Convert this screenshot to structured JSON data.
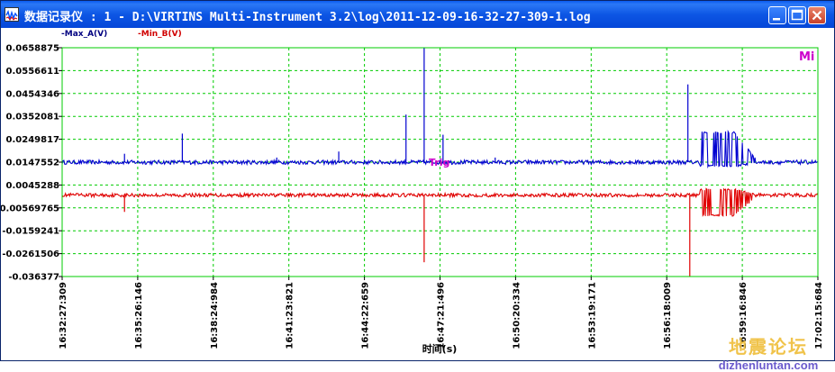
{
  "window": {
    "title": "数据记录仪 : 1 - D:\\VIRTINS Multi-Instrument 3.2\\log\\2011-12-09-16-32-27-309-1.log"
  },
  "colors": {
    "series_a": "#0000d0",
    "series_b": "#e00000",
    "grid": "#00cc00",
    "legend_a": "#000080",
    "legend_b": "#d00000",
    "marker": "#cc00cc"
  },
  "watermark": {
    "cn": "地震论坛",
    "url": "dizhenluntan.com"
  },
  "chart_data": {
    "type": "line",
    "ylim": [
      -0.036377,
      0.0658875
    ],
    "yticks": [
      "0.0658875",
      "0.0556611",
      "0.0454346",
      "0.0352081",
      "0.0249817",
      "0.0147552",
      "0.0045288",
      "-0.00569765",
      "-0.0159241",
      "-0.0261506",
      "-0.036377"
    ],
    "xticks": [
      "16:32:27:309",
      "16:35:26:146",
      "16:38:24:984",
      "16:41:23:821",
      "16:44:22:659",
      "16:47:21:496",
      "16:50:20:334",
      "16:53:19:171",
      "16:56:18:009",
      "16:59:16:846",
      "17:02:15:684"
    ],
    "xlabel": "时间(s)",
    "ylabel": "",
    "legend": [
      "-Max_A(V)",
      "-Min_B(V)"
    ],
    "corner_label": "Mi",
    "marker_label": "Trig",
    "series": [
      {
        "name": "-Max_A(V)",
        "baseline": 0.0147,
        "noise": 0.0009,
        "spikes": [
          {
            "t": 0.0825,
            "v": 0.0185
          },
          {
            "t": 0.159,
            "v": 0.0275
          },
          {
            "t": 0.284,
            "v": 0.0168
          },
          {
            "t": 0.366,
            "v": 0.0195
          },
          {
            "t": 0.455,
            "v": 0.036
          },
          {
            "t": 0.479,
            "v": 0.0658875
          },
          {
            "t": 0.504,
            "v": 0.027
          },
          {
            "t": 0.573,
            "v": 0.0168
          },
          {
            "t": 0.828,
            "v": 0.0495
          }
        ],
        "burst": {
          "from": 0.8435,
          "to": 0.921,
          "peak": 0.028,
          "low": 0.013
        }
      },
      {
        "name": "-Min_B(V)",
        "baseline": 0.0,
        "noise": 0.0008,
        "spikes": [
          {
            "t": 0.0825,
            "v": -0.0075
          },
          {
            "t": 0.479,
            "v": -0.03
          },
          {
            "t": 0.8305,
            "v": -0.036377
          }
        ],
        "burst": {
          "from": 0.8435,
          "to": 0.921,
          "peak": 0.0025,
          "low": -0.009
        }
      }
    ]
  }
}
